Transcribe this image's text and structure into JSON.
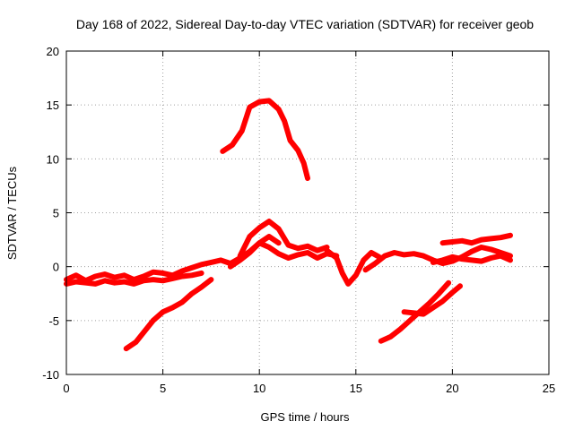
{
  "chart_data": {
    "type": "scatter",
    "title": "Day 168 of 2022, Sidereal Day-to-day VTEC variation (SDTVAR) for receiver geob",
    "xlabel": "GPS time / hours",
    "ylabel": "SDTVAR / TECUs",
    "xlim": [
      0,
      25
    ],
    "ylim": [
      -10,
      20
    ],
    "xticks": [
      0,
      5,
      10,
      15,
      20,
      25
    ],
    "yticks": [
      -10,
      -5,
      0,
      5,
      10,
      15,
      20
    ],
    "grid": true,
    "color": "#ff0000",
    "series": [
      {
        "name": "arc-baseline-a",
        "x": [
          0.0,
          0.5,
          1.0,
          1.5,
          2.0,
          2.5,
          3.0,
          3.5,
          4.0,
          4.5,
          5.0,
          5.5,
          6.0,
          6.5,
          7.0,
          7.5,
          8.0,
          8.5,
          9.0,
          9.5,
          10.0,
          10.5,
          11.0
        ],
        "y": [
          -1.2,
          -0.8,
          -1.3,
          -0.9,
          -0.7,
          -1.0,
          -0.8,
          -1.2,
          -0.9,
          -0.5,
          -0.6,
          -0.8,
          -0.4,
          -0.1,
          0.2,
          0.4,
          0.6,
          0.3,
          0.8,
          1.4,
          2.2,
          2.8,
          2.2
        ]
      },
      {
        "name": "arc-baseline-b",
        "x": [
          0.0,
          0.5,
          1.0,
          1.5,
          2.0,
          2.5,
          3.0,
          3.5,
          4.0,
          4.5,
          5.0,
          5.5,
          6.0,
          6.5,
          7.0
        ],
        "y": [
          -1.6,
          -1.4,
          -1.5,
          -1.6,
          -1.3,
          -1.5,
          -1.4,
          -1.6,
          -1.3,
          -1.2,
          -1.3,
          -1.1,
          -0.9,
          -0.8,
          -0.6
        ]
      },
      {
        "name": "arc-peak",
        "x": [
          8.1,
          8.6,
          9.1,
          9.5,
          10.0,
          10.5,
          11.0,
          11.3,
          11.6,
          12.0,
          12.3,
          12.5
        ],
        "y": [
          10.7,
          11.3,
          12.6,
          14.8,
          15.3,
          15.4,
          14.6,
          13.5,
          11.7,
          10.8,
          9.6,
          8.2
        ]
      },
      {
        "name": "arc-middle-a",
        "x": [
          8.5,
          9.0,
          9.5,
          10.0,
          10.5,
          11.0,
          11.5,
          12.0,
          12.5,
          13.0,
          13.5,
          14.0
        ],
        "y": [
          0.0,
          0.6,
          1.3,
          2.2,
          1.8,
          1.2,
          0.8,
          1.1,
          1.3,
          0.8,
          1.2,
          1.0
        ]
      },
      {
        "name": "arc-middle-b",
        "x": [
          9.0,
          9.5,
          10.0,
          10.5,
          11.0,
          11.5,
          12.0,
          12.5,
          13.0,
          13.5
        ],
        "y": [
          1.0,
          2.8,
          3.6,
          4.2,
          3.5,
          2.0,
          1.7,
          1.9,
          1.5,
          1.8
        ]
      },
      {
        "name": "arc-middle-c",
        "x": [
          13.5,
          14.0,
          14.3,
          14.6,
          15.0,
          15.4,
          15.8,
          16.2
        ],
        "y": [
          1.5,
          0.8,
          -0.6,
          -1.6,
          -0.8,
          0.6,
          1.3,
          0.9
        ]
      },
      {
        "name": "arc-right-a",
        "x": [
          15.5,
          16.0,
          16.5,
          17.0,
          17.5,
          18.0,
          18.5,
          19.0,
          19.5,
          20.0,
          20.5,
          21.0,
          21.5,
          22.0,
          22.5,
          23.0
        ],
        "y": [
          -0.3,
          0.3,
          1.0,
          1.3,
          1.1,
          1.2,
          1.0,
          0.6,
          0.3,
          0.5,
          0.9,
          1.4,
          1.8,
          1.6,
          1.3,
          1.0
        ]
      },
      {
        "name": "arc-right-b",
        "x": [
          19.5,
          20.0,
          20.5,
          21.0,
          21.5,
          22.0,
          22.5,
          23.0
        ],
        "y": [
          2.2,
          2.3,
          2.4,
          2.2,
          2.5,
          2.6,
          2.7,
          2.9
        ]
      },
      {
        "name": "arc-right-c",
        "x": [
          19.0,
          19.5,
          20.0,
          20.5,
          21.0,
          21.5,
          22.0,
          22.5,
          23.0
        ],
        "y": [
          0.4,
          0.6,
          0.9,
          0.7,
          0.6,
          0.5,
          0.8,
          1.0,
          0.6
        ]
      },
      {
        "name": "arc-declining",
        "x": [
          3.1,
          3.6,
          4.0,
          4.5,
          5.0,
          5.5,
          6.0,
          6.5,
          7.0,
          7.5
        ],
        "y": [
          -7.6,
          -7.0,
          -6.1,
          -5.0,
          -4.2,
          -3.8,
          -3.3,
          -2.5,
          -1.9,
          -1.2
        ]
      },
      {
        "name": "arc-neg-right-a",
        "x": [
          16.3,
          16.8,
          17.3,
          17.8,
          18.3,
          18.8,
          19.3,
          19.8
        ],
        "y": [
          -6.9,
          -6.5,
          -5.8,
          -5.0,
          -4.2,
          -3.4,
          -2.5,
          -1.5
        ]
      },
      {
        "name": "arc-neg-right-b",
        "x": [
          17.5,
          18.0,
          18.5,
          19.0,
          19.5,
          20.0,
          20.4
        ],
        "y": [
          -4.2,
          -4.3,
          -4.4,
          -3.8,
          -3.2,
          -2.4,
          -1.8
        ]
      }
    ]
  }
}
